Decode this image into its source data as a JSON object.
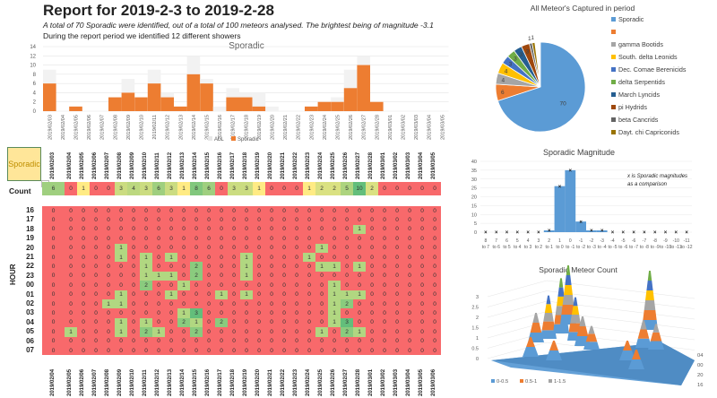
{
  "report": {
    "title": "Report for 2019-2-3 to 2019-2-28",
    "subtitle": "A total of 70 Sporadic were identified, out of a total of 100 meteors analysed. The brightest being of magnitude -3.1",
    "summary_line": "During the report period we identified 12 different showers"
  },
  "filter": {
    "selected": "Sporadic",
    "dropdown_icon": "filter-dropdown-icon"
  },
  "table": {
    "count_label": "Count",
    "hour_label": "HOUR",
    "dates": [
      "2019/02/03",
      "2019/02/04",
      "2019/02/05",
      "2019/02/06",
      "2019/02/07",
      "2019/02/08",
      "2019/02/09",
      "2019/02/10",
      "2019/02/11",
      "2019/02/12",
      "2019/02/13",
      "2019/02/14",
      "2019/02/15",
      "2019/02/16",
      "2019/02/17",
      "2019/02/18",
      "2019/02/19",
      "2019/02/20",
      "2019/02/21",
      "2019/02/22",
      "2019/02/23",
      "2019/02/24",
      "2019/02/25",
      "2019/02/26",
      "2019/02/27",
      "2019/02/28",
      "2019/03/01",
      "2019/03/02",
      "2019/03/03",
      "2019/03/04",
      "2019/03/05"
    ],
    "bottom_dates": [
      "2019/02/04",
      "2019/02/05",
      "2019/02/06",
      "2019/02/07",
      "2019/02/08",
      "2019/02/09",
      "2019/02/10",
      "2019/02/11",
      "2019/02/12",
      "2019/02/13",
      "2019/02/14",
      "2019/02/15",
      "2019/02/16",
      "2019/02/17",
      "2019/02/18",
      "2019/02/19",
      "2019/02/20",
      "2019/02/21",
      "2019/02/22",
      "2019/02/23",
      "2019/02/24",
      "2019/02/25",
      "2019/02/26",
      "2019/02/27",
      "2019/02/28",
      "2019/03/01",
      "2019/03/02",
      "2019/03/03",
      "2019/03/04",
      "2019/03/05",
      "2019/03/06"
    ],
    "counts": [
      6,
      0,
      1,
      0,
      0,
      3,
      4,
      3,
      6,
      3,
      1,
      8,
      6,
      0,
      3,
      3,
      1,
      0,
      0,
      0,
      1,
      2,
      2,
      5,
      10,
      2,
      0,
      0,
      0,
      0,
      0
    ],
    "hours": [
      "16",
      "17",
      "18",
      "19",
      "20",
      "21",
      "22",
      "23",
      "00",
      "01",
      "02",
      "03",
      "04",
      "05",
      "06",
      "07"
    ],
    "grid": [
      [
        0,
        0,
        0,
        0,
        0,
        0,
        0,
        0,
        0,
        0,
        0,
        0,
        0,
        0,
        0,
        0,
        0,
        0,
        0,
        0,
        0,
        0,
        0,
        0,
        0,
        0,
        0,
        0,
        0,
        0,
        0
      ],
      [
        0,
        0,
        0,
        0,
        0,
        0,
        0,
        0,
        0,
        0,
        0,
        0,
        0,
        0,
        0,
        0,
        0,
        0,
        0,
        0,
        0,
        0,
        0,
        0,
        0,
        0,
        0,
        0,
        0,
        0,
        0
      ],
      [
        0,
        0,
        0,
        0,
        0,
        0,
        0,
        0,
        0,
        0,
        0,
        0,
        0,
        0,
        0,
        0,
        0,
        0,
        0,
        0,
        0,
        0,
        0,
        0,
        1,
        0,
        0,
        0,
        0,
        0,
        0
      ],
      [
        0,
        0,
        0,
        0,
        0,
        0,
        0,
        0,
        0,
        0,
        0,
        0,
        0,
        0,
        0,
        0,
        0,
        0,
        0,
        0,
        0,
        0,
        0,
        0,
        0,
        0,
        0,
        0,
        0,
        0,
        0
      ],
      [
        0,
        0,
        0,
        0,
        0,
        1,
        0,
        0,
        0,
        0,
        0,
        0,
        0,
        0,
        0,
        0,
        0,
        0,
        0,
        0,
        0,
        1,
        0,
        0,
        0,
        0,
        0,
        0,
        0,
        0,
        0
      ],
      [
        0,
        0,
        0,
        0,
        0,
        1,
        0,
        1,
        0,
        1,
        0,
        0,
        0,
        0,
        0,
        1,
        0,
        0,
        0,
        0,
        1,
        0,
        0,
        0,
        0,
        0,
        0,
        0,
        0,
        0,
        0
      ],
      [
        0,
        0,
        0,
        0,
        0,
        0,
        0,
        1,
        0,
        0,
        0,
        2,
        0,
        0,
        0,
        1,
        0,
        0,
        0,
        0,
        0,
        1,
        1,
        0,
        1,
        0,
        0,
        0,
        0,
        0,
        0
      ],
      [
        0,
        0,
        0,
        0,
        0,
        0,
        0,
        1,
        1,
        1,
        0,
        2,
        0,
        0,
        0,
        1,
        0,
        0,
        0,
        0,
        0,
        0,
        0,
        0,
        0,
        0,
        0,
        0,
        0,
        0,
        0
      ],
      [
        0,
        0,
        0,
        0,
        0,
        0,
        0,
        2,
        0,
        0,
        1,
        0,
        0,
        0,
        0,
        0,
        0,
        0,
        0,
        0,
        0,
        0,
        1,
        0,
        0,
        0,
        0,
        0,
        0,
        0,
        0
      ],
      [
        0,
        0,
        0,
        0,
        0,
        1,
        0,
        0,
        0,
        1,
        0,
        0,
        0,
        1,
        0,
        1,
        0,
        0,
        0,
        0,
        0,
        0,
        1,
        1,
        1,
        0,
        0,
        0,
        0,
        0,
        0
      ],
      [
        0,
        0,
        0,
        0,
        1,
        1,
        0,
        0,
        0,
        0,
        0,
        0,
        0,
        0,
        0,
        0,
        0,
        0,
        0,
        0,
        0,
        0,
        1,
        2,
        0,
        0,
        0,
        0,
        0,
        0,
        0
      ],
      [
        0,
        0,
        0,
        0,
        0,
        0,
        0,
        0,
        0,
        0,
        1,
        3,
        0,
        0,
        0,
        0,
        0,
        0,
        0,
        0,
        0,
        0,
        1,
        0,
        0,
        0,
        0,
        0,
        0,
        0,
        0
      ],
      [
        0,
        0,
        0,
        0,
        0,
        1,
        0,
        1,
        0,
        0,
        2,
        1,
        0,
        2,
        0,
        0,
        0,
        0,
        0,
        0,
        0,
        0,
        1,
        3,
        0,
        0,
        0,
        0,
        0,
        0,
        0
      ],
      [
        0,
        1,
        0,
        0,
        0,
        1,
        0,
        2,
        1,
        0,
        0,
        2,
        0,
        0,
        0,
        0,
        0,
        0,
        0,
        0,
        0,
        1,
        0,
        2,
        1,
        0,
        0,
        0,
        0,
        0,
        0
      ],
      [
        0,
        0,
        0,
        0,
        0,
        0,
        0,
        0,
        0,
        0,
        0,
        0,
        0,
        0,
        0,
        0,
        0,
        0,
        0,
        0,
        0,
        0,
        0,
        0,
        0,
        0,
        0,
        0,
        0,
        0,
        0
      ],
      [
        0,
        0,
        0,
        0,
        0,
        0,
        0,
        0,
        0,
        0,
        0,
        0,
        0,
        0,
        0,
        0,
        0,
        0,
        0,
        0,
        0,
        0,
        0,
        0,
        0,
        0,
        0,
        0,
        0,
        0,
        0
      ]
    ]
  },
  "colors": {
    "sporadic": "#ed7d31",
    "all": "#f2f2f2",
    "heat_low": "#f8696b",
    "heat_mid": "#ffeb84",
    "heat_high": "#63be7b",
    "pie_blue": "#5b9bd5",
    "filter_fill": "#ffe699"
  },
  "chart_data": [
    {
      "type": "bar",
      "title": "Sporadic",
      "categories": [
        "2019/02/03",
        "2019/02/04",
        "2019/02/05",
        "2019/02/06",
        "2019/02/07",
        "2019/02/08",
        "2019/02/09",
        "2019/02/10",
        "2019/02/11",
        "2019/02/12",
        "2019/02/13",
        "2019/02/14",
        "2019/02/15",
        "2019/02/16",
        "2019/02/17",
        "2019/02/18",
        "2019/02/19",
        "2019/02/20",
        "2019/02/21",
        "2019/02/22",
        "2019/02/23",
        "2019/02/24",
        "2019/02/25",
        "2019/02/26",
        "2019/02/27",
        "2019/02/28",
        "2019/03/01",
        "2019/03/02",
        "2019/03/03",
        "2019/03/04",
        "2019/03/05"
      ],
      "series": [
        {
          "name": "ALL",
          "values": [
            9,
            0,
            1,
            0,
            0,
            3,
            7,
            3,
            9,
            4,
            1,
            12,
            7,
            1,
            5,
            4,
            4,
            1,
            0,
            0,
            1,
            2,
            3,
            9,
            12,
            2,
            0,
            0,
            0,
            0,
            0
          ]
        },
        {
          "name": "Sporadic",
          "values": [
            6,
            0,
            1,
            0,
            0,
            3,
            4,
            3,
            6,
            3,
            1,
            8,
            6,
            0,
            3,
            3,
            1,
            0,
            0,
            0,
            1,
            2,
            2,
            5,
            10,
            2,
            0,
            0,
            0,
            0,
            0
          ]
        }
      ],
      "yticks": [
        0,
        2,
        4,
        6,
        8,
        10,
        12,
        14
      ],
      "ylim": [
        0,
        14
      ],
      "legend": "bottom",
      "grid": true
    },
    {
      "type": "pie",
      "title": "All Meteor's Captured in period",
      "labels": [
        "Sporadic",
        "",
        "gamma Bootids",
        "South. delta Leonids",
        "Dec. Comae Berenicids",
        "delta Serpentids",
        "March Lyncids",
        "pi Hydrids",
        "beta Cancrids",
        "Dayt. chi Capriconids"
      ],
      "values": [
        70,
        6,
        4,
        4,
        3,
        3,
        3,
        3,
        1,
        1
      ],
      "colors": [
        "#5b9bd5",
        "#ed7d31",
        "#a5a5a5",
        "#ffc000",
        "#4472c4",
        "#70ad47",
        "#255e91",
        "#9e480e",
        "#636363",
        "#997300"
      ],
      "legend": "right"
    },
    {
      "type": "bar",
      "title": "Sporadic Magnitude",
      "categories": [
        "8 to 7",
        "7 to 6",
        "6 to 5",
        "5 to 4",
        "4 to 3",
        "3 to 2",
        "2 to 1",
        "1 to 0",
        "0 to -1",
        "-1 to -2",
        "-2 to -3",
        "-3 to -4",
        "-4 to -5",
        "-5 to -6",
        "-6 to -7",
        "-7 to -8",
        "-8 to -9",
        "-9 to -10",
        "-10 to -11",
        "-11 to -12"
      ],
      "tick_top": [
        "8",
        "7",
        "6",
        "5",
        "4",
        "3",
        "2",
        "1",
        "0",
        "-1",
        "-2",
        "-3",
        "-4",
        "-5",
        "-6",
        "-7",
        "-8",
        "-9",
        "-10",
        "-11"
      ],
      "values": [
        0,
        0,
        0,
        0,
        0,
        0,
        1,
        26,
        35,
        6,
        1,
        1,
        0,
        0,
        0,
        0,
        0,
        0,
        0,
        0
      ],
      "markers": [
        0,
        0,
        0,
        0,
        0,
        0,
        1,
        26,
        35,
        6,
        1,
        1,
        0,
        0,
        0,
        0,
        0,
        0,
        0,
        0
      ],
      "annotation": "x is Sporadic magnitudes as a comparison",
      "yticks": [
        0,
        5,
        10,
        15,
        20,
        25,
        30,
        35,
        40
      ],
      "ylim": [
        0,
        40
      ]
    },
    {
      "type": "surface",
      "title": "Sporadic Meteor Count",
      "zticks": [
        "0",
        "0.5",
        "1",
        "1.5",
        "2",
        "2.5",
        "3"
      ],
      "depth_ticks": [
        "04",
        "00",
        "20",
        "16"
      ],
      "legend": [
        "0-0.5",
        "0.5-1",
        "1-1.5"
      ],
      "legend_colors": [
        "#5b9bd5",
        "#ed7d31",
        "#a5a5a5"
      ]
    }
  ]
}
